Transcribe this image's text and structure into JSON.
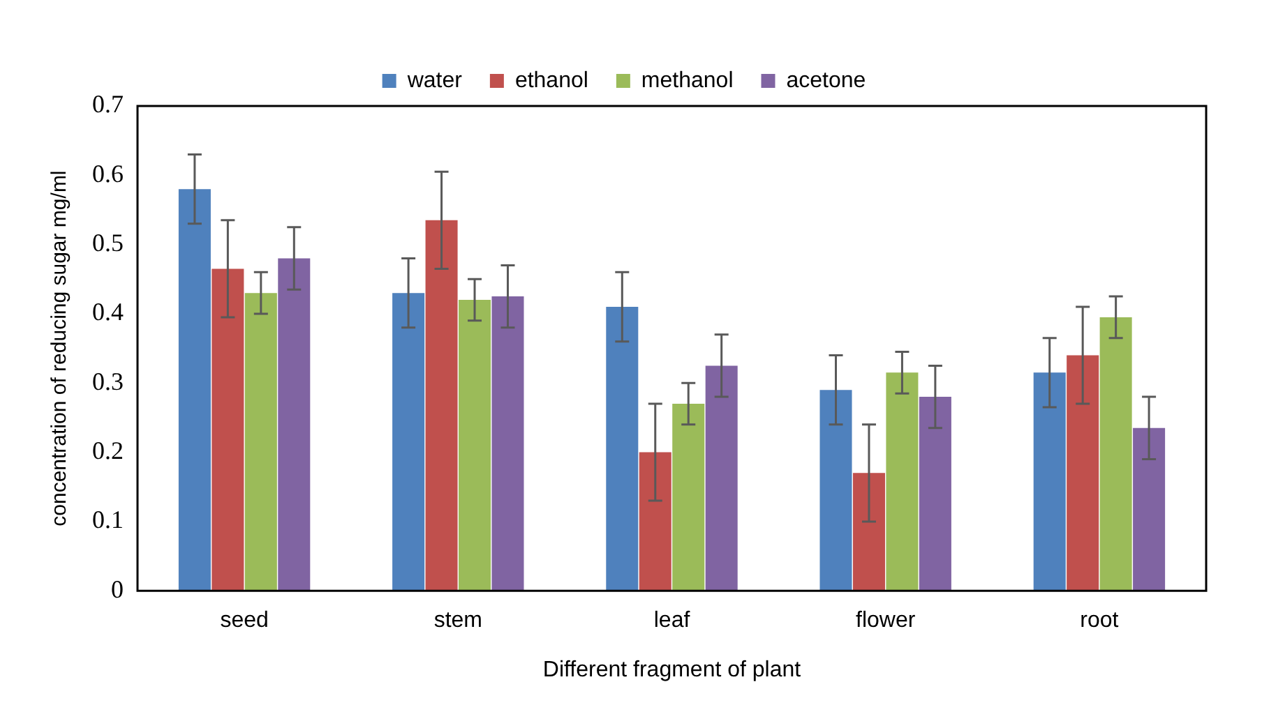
{
  "chart_data": {
    "type": "bar",
    "xlabel": "Different fragment of plant",
    "ylabel": "concentration of reducing sugar mg/ml",
    "categories": [
      "seed",
      "stem",
      "leaf",
      "flower",
      "root"
    ],
    "series": [
      {
        "name": "water",
        "color": "#4f81bd",
        "values": [
          0.58,
          0.43,
          0.41,
          0.29,
          0.315
        ],
        "errors": [
          0.05,
          0.05,
          0.05,
          0.05,
          0.05
        ]
      },
      {
        "name": "ethanol",
        "color": "#c0504d",
        "values": [
          0.465,
          0.535,
          0.2,
          0.17,
          0.34
        ],
        "errors": [
          0.07,
          0.07,
          0.07,
          0.07,
          0.07
        ]
      },
      {
        "name": "methanol",
        "color": "#9bbb59",
        "values": [
          0.43,
          0.42,
          0.27,
          0.315,
          0.395
        ],
        "errors": [
          0.03,
          0.03,
          0.03,
          0.03,
          0.03
        ]
      },
      {
        "name": "acetone",
        "color": "#8064a2",
        "values": [
          0.48,
          0.425,
          0.325,
          0.28,
          0.235
        ],
        "errors": [
          0.045,
          0.045,
          0.045,
          0.045,
          0.045
        ]
      }
    ],
    "ylim": [
      0,
      0.7
    ],
    "yticks": [
      0,
      0.1,
      0.2,
      0.3,
      0.4,
      0.5,
      0.6,
      0.7
    ],
    "grid": false,
    "legend": "top"
  }
}
